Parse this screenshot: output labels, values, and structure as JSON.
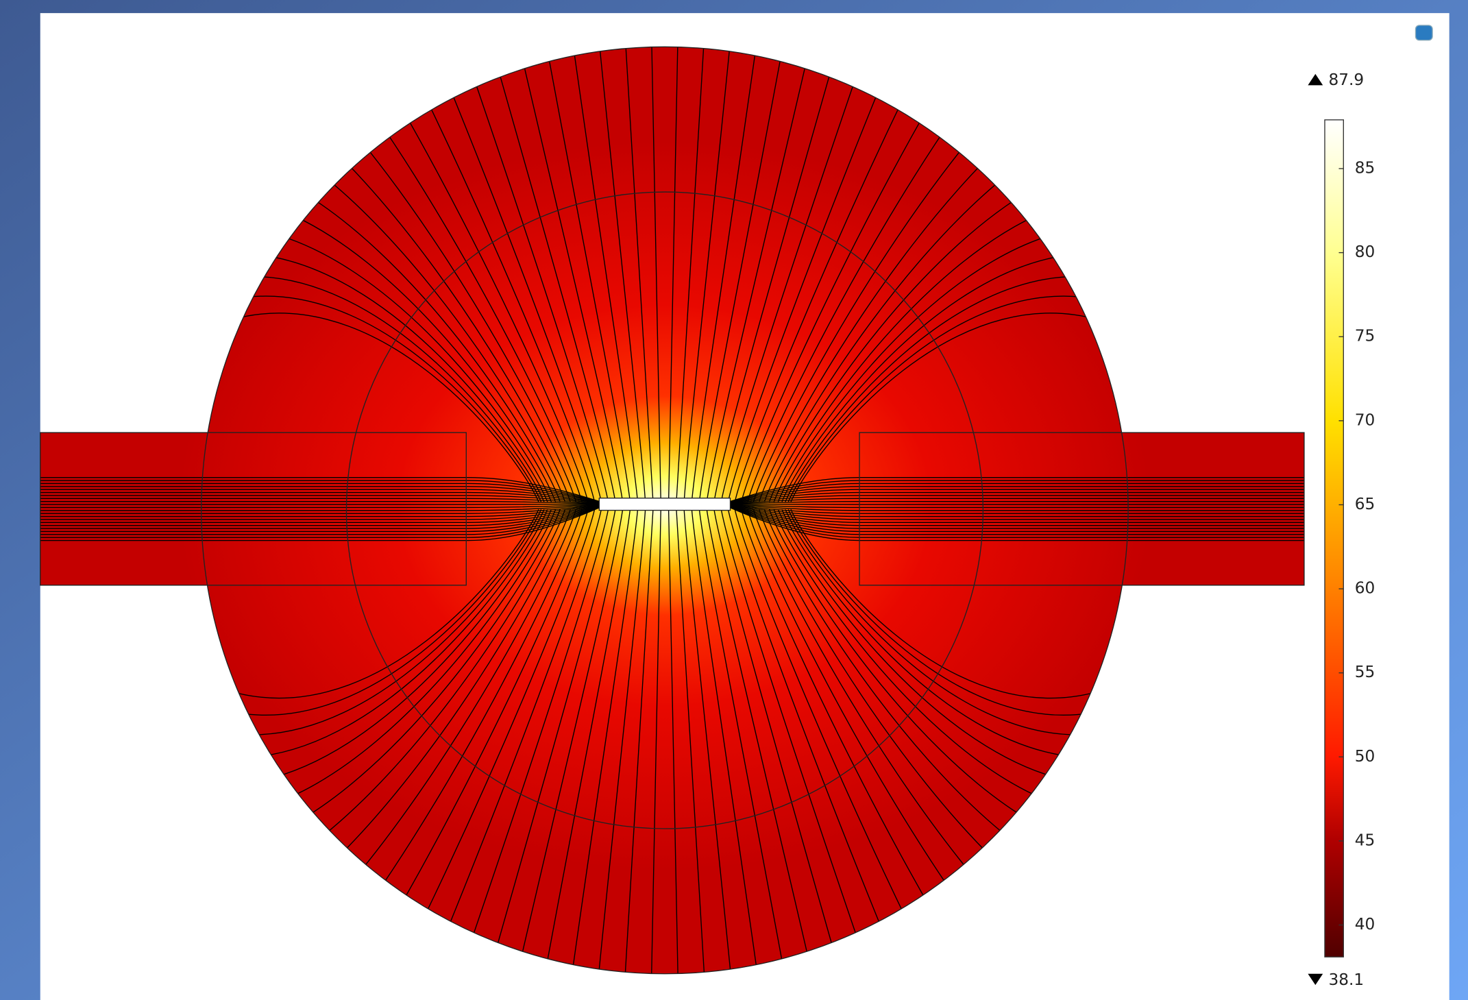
{
  "colorbar": {
    "max": 87.9,
    "min": 38.1,
    "ticks": [
      40,
      45,
      50,
      55,
      60,
      65,
      70,
      75,
      80,
      85
    ]
  }
}
